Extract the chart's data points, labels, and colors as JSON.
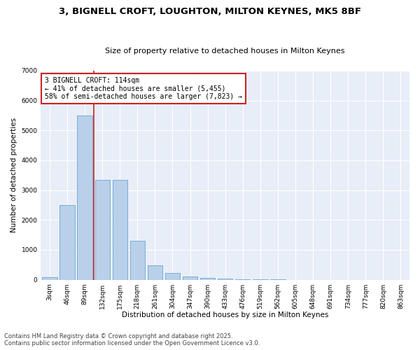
{
  "title_line1": "3, BIGNELL CROFT, LOUGHTON, MILTON KEYNES, MK5 8BF",
  "title_line2": "Size of property relative to detached houses in Milton Keynes",
  "xlabel": "Distribution of detached houses by size in Milton Keynes",
  "ylabel": "Number of detached properties",
  "categories": [
    "3sqm",
    "46sqm",
    "89sqm",
    "132sqm",
    "175sqm",
    "218sqm",
    "261sqm",
    "304sqm",
    "347sqm",
    "390sqm",
    "433sqm",
    "476sqm",
    "519sqm",
    "562sqm",
    "605sqm",
    "648sqm",
    "691sqm",
    "734sqm",
    "777sqm",
    "820sqm",
    "863sqm"
  ],
  "values": [
    90,
    2500,
    5500,
    3350,
    3350,
    1300,
    480,
    220,
    100,
    50,
    30,
    10,
    5,
    3,
    2,
    1,
    1,
    0,
    0,
    0,
    0
  ],
  "bar_color": "#b8d0ea",
  "bar_edge_color": "#7aadd4",
  "vline_x_index": 2,
  "vline_color": "#cc2222",
  "annotation_box_text": "3 BIGNELL CROFT: 114sqm\n← 41% of detached houses are smaller (5,455)\n58% of semi-detached houses are larger (7,823) →",
  "annotation_box_color": "#cc2222",
  "annotation_box_facecolor": "white",
  "ylim": [
    0,
    7000
  ],
  "yticks": [
    0,
    1000,
    2000,
    3000,
    4000,
    5000,
    6000,
    7000
  ],
  "background_color": "#e8eef8",
  "grid_color": "white",
  "footer_line1": "Contains HM Land Registry data © Crown copyright and database right 2025.",
  "footer_line2": "Contains public sector information licensed under the Open Government Licence v3.0.",
  "title_fontsize": 9.5,
  "subtitle_fontsize": 8,
  "axis_label_fontsize": 7.5,
  "tick_fontsize": 6.5,
  "annotation_fontsize": 7,
  "footer_fontsize": 6
}
